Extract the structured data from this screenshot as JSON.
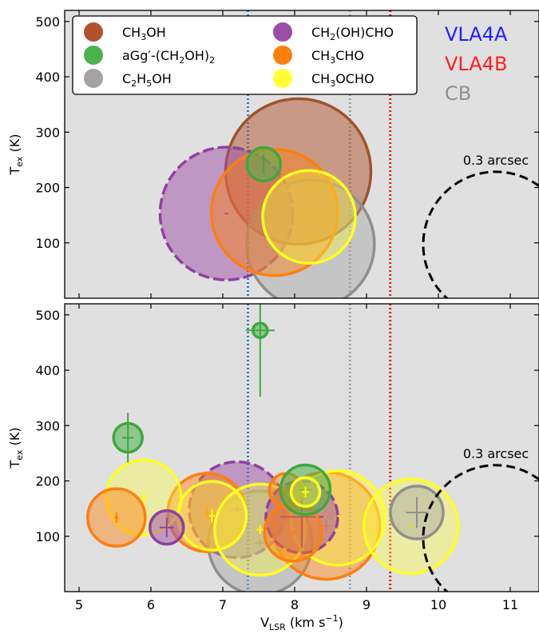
{
  "chart_data": {
    "type": "scatter",
    "xlabel": "V",
    "xlabel_sub": "LSR",
    "xlabel_units_pre": " (km s",
    "xlabel_units_sup": "−1",
    "xlabel_units_post": ")",
    "ylabel": "T",
    "ylabel_sub": "ex",
    "ylabel_units": " (K)",
    "xlim": [
      4.8,
      11.4
    ],
    "x_ticks": [
      5,
      6,
      7,
      8,
      9,
      10,
      11
    ],
    "x_tick_labels": [
      "5",
      "6",
      "7",
      "8",
      "9",
      "10",
      "11"
    ],
    "grid": false,
    "vlines": [
      {
        "x": 7.35,
        "color": "#3a7fc9",
        "style": "dotted"
      },
      {
        "x": 8.77,
        "color": "#a0a0a0",
        "style": "dotted"
      },
      {
        "x": 9.33,
        "color": "#d62020",
        "style": "dotted"
      }
    ],
    "source_labels": [
      {
        "text": "VLA4A",
        "color": "#1f1fff"
      },
      {
        "text": "VLA4B",
        "color": "#ff1f1f"
      },
      {
        "text": "CB",
        "color": "#909090"
      }
    ],
    "legend": {
      "placement": "top-left",
      "entries": [
        {
          "key": "ch3oh",
          "color": "#b0532c",
          "parts": [
            [
              "CH",
              ""
            ],
            [
              "3",
              "sub"
            ],
            [
              "OH",
              ""
            ]
          ]
        },
        {
          "key": "eg",
          "color": "#4cb34c",
          "parts": [
            [
              "aGg′-(CH",
              ""
            ],
            [
              "2",
              "sub"
            ],
            [
              "OH)",
              ""
            ],
            [
              "2",
              "sub"
            ]
          ]
        },
        {
          "key": "c2h5oh",
          "color": "#a3a3a3",
          "parts": [
            [
              "C",
              ""
            ],
            [
              "2",
              "sub"
            ],
            [
              "H",
              ""
            ],
            [
              "5",
              "sub"
            ],
            [
              "OH",
              ""
            ]
          ]
        },
        {
          "key": "gla",
          "color": "#9b4ea6",
          "parts": [
            [
              "CH",
              ""
            ],
            [
              "2",
              "sub"
            ],
            [
              "(OH)CHO",
              ""
            ]
          ]
        },
        {
          "key": "ch3cho",
          "color": "#ff7f0e",
          "parts": [
            [
              "CH",
              ""
            ],
            [
              "3",
              "sub"
            ],
            [
              "CHO",
              ""
            ]
          ]
        },
        {
          "key": "mf",
          "color": "#ffff33",
          "parts": [
            [
              "CH",
              ""
            ],
            [
              "3",
              "sub"
            ],
            [
              "OCHO",
              ""
            ]
          ]
        }
      ]
    },
    "panels": [
      {
        "ylim": [
          0,
          520
        ],
        "y_ticks": [
          100,
          200,
          300,
          400,
          500
        ],
        "y_tick_labels": [
          "100",
          "200",
          "300",
          "400",
          "500"
        ],
        "scale_circle": {
          "x": 10.8,
          "y": 97,
          "r": 91,
          "label": "0.3 arcsec"
        },
        "points": [
          {
            "species": "ch3oh",
            "x": 8.05,
            "y": 229,
            "r": 91,
            "dashed": false,
            "xerr": 0,
            "yerr": 0
          },
          {
            "species": "gla",
            "x": 7.05,
            "y": 153,
            "r": 83,
            "dashed": true,
            "xerr": 0.03,
            "yerr": 2
          },
          {
            "species": "c2h5oh",
            "x": 8.22,
            "y": 98,
            "r": 80,
            "dashed": false,
            "xerr": 0,
            "yerr": 0
          },
          {
            "species": "ch3cho",
            "x": 7.72,
            "y": 155,
            "r": 79,
            "dashed": false,
            "xerr": 0,
            "yerr": 0
          },
          {
            "species": "mf",
            "x": 8.2,
            "y": 147,
            "r": 58,
            "dashed": false,
            "xerr": 0,
            "yerr": 0
          },
          {
            "species": "eg",
            "x": 7.57,
            "y": 242,
            "r": 21,
            "dashed": false,
            "xerr": 0,
            "yerr": 18
          }
        ]
      },
      {
        "ylim": [
          0,
          520
        ],
        "y_ticks": [
          100,
          200,
          300,
          400,
          500
        ],
        "y_tick_labels": [
          "100",
          "200",
          "300",
          "400",
          "500"
        ],
        "scale_circle": {
          "x": 10.8,
          "y": 97,
          "r": 91,
          "label": "0.3 arcsec"
        },
        "points": [
          {
            "species": "gla",
            "x": 7.2,
            "y": 148,
            "r": 60,
            "dashed": true,
            "xerr": 0.1,
            "yerr": 5
          },
          {
            "species": "c2h5oh",
            "x": 7.52,
            "y": 88,
            "r": 65,
            "dashed": false,
            "xerr": 0.08,
            "yerr": 5
          },
          {
            "species": "ch3cho",
            "x": 6.78,
            "y": 143,
            "r": 49,
            "dashed": false,
            "xerr": 0.04,
            "yerr": 10
          },
          {
            "species": "ch3cho",
            "x": 8.44,
            "y": 119,
            "r": 67,
            "dashed": false,
            "xerr": 0.05,
            "yerr": 10
          },
          {
            "species": "mf",
            "x": 8.6,
            "y": 133,
            "r": 59,
            "dashed": false,
            "xerr": 0.05,
            "yerr": 8
          },
          {
            "species": "mf",
            "x": 7.52,
            "y": 112,
            "r": 57,
            "dashed": false,
            "xerr": 0.05,
            "yerr": 8
          },
          {
            "species": "gla",
            "x": 8.1,
            "y": 135,
            "r": 45,
            "dashed": true,
            "xerr": 0.3,
            "yerr": 55
          },
          {
            "species": "mf",
            "x": 9.62,
            "y": 118,
            "r": 59,
            "dashed": false,
            "xerr": 0.05,
            "yerr": 5
          },
          {
            "species": "mf",
            "x": 6.85,
            "y": 137,
            "r": 43,
            "dashed": false,
            "xerr": 0.04,
            "yerr": 12
          },
          {
            "species": "mf",
            "x": 5.9,
            "y": 170,
            "r": 47,
            "dashed": false,
            "xerr": 0.04,
            "yerr": 10
          },
          {
            "species": "ch3cho",
            "x": 5.52,
            "y": 134,
            "r": 36,
            "dashed": false,
            "xerr": 0.03,
            "yerr": 10
          },
          {
            "species": "gla",
            "x": 6.22,
            "y": 116,
            "r": 21,
            "dashed": false,
            "xerr": 0.1,
            "yerr": 18
          },
          {
            "species": "ch3cho",
            "x": 7.98,
            "y": 107,
            "r": 36,
            "dashed": false,
            "xerr": 0.05,
            "yerr": 5
          },
          {
            "species": "c2h5oh",
            "x": 9.7,
            "y": 143,
            "r": 33,
            "dashed": false,
            "xerr": 0.15,
            "yerr": 28
          },
          {
            "species": "ch3cho",
            "x": 7.88,
            "y": 183,
            "r": 21,
            "dashed": false,
            "xerr": 0.05,
            "yerr": 10
          },
          {
            "species": "eg",
            "x": 8.15,
            "y": 184,
            "r": 31,
            "dashed": false,
            "xerr": 0.1,
            "yerr": 15
          },
          {
            "species": "mf",
            "x": 8.15,
            "y": 180,
            "r": 18,
            "dashed": false,
            "xerr": 0.05,
            "yerr": 10
          },
          {
            "species": "eg",
            "x": 5.68,
            "y": 278,
            "r": 18,
            "dashed": false,
            "xerr": 0.08,
            "yerr": 45
          },
          {
            "species": "eg",
            "x": 7.52,
            "y": 472,
            "r": 9,
            "dashed": false,
            "xerr": 0.2,
            "yerr": 120
          }
        ]
      }
    ]
  }
}
